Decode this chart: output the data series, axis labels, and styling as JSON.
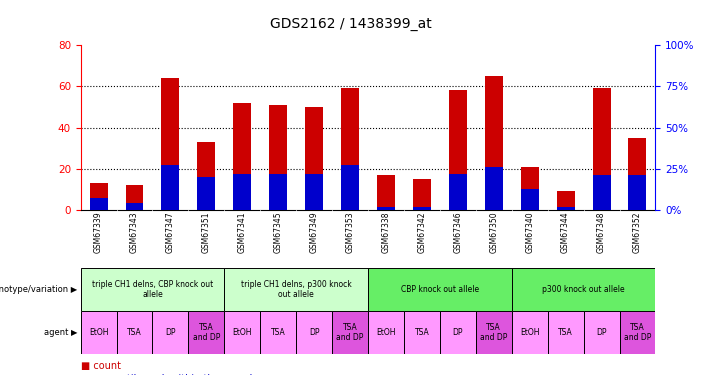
{
  "title": "GDS2162 / 1438399_at",
  "samples": [
    "GSM67339",
    "GSM67343",
    "GSM67347",
    "GSM67351",
    "GSM67341",
    "GSM67345",
    "GSM67349",
    "GSM67353",
    "GSM67338",
    "GSM67342",
    "GSM67346",
    "GSM67350",
    "GSM67340",
    "GSM67344",
    "GSM67348",
    "GSM67352"
  ],
  "counts": [
    13,
    12,
    64,
    33,
    52,
    51,
    50,
    59,
    17,
    15,
    58,
    65,
    21,
    9,
    59,
    35
  ],
  "percentiles": [
    7,
    4,
    27,
    20,
    22,
    22,
    22,
    27,
    2,
    2,
    22,
    26,
    13,
    2,
    21,
    21
  ],
  "ylim_left": [
    0,
    80
  ],
  "ylim_right": [
    0,
    100
  ],
  "yticks_left": [
    0,
    20,
    40,
    60,
    80
  ],
  "yticks_right": [
    0,
    25,
    50,
    75,
    100
  ],
  "bar_color": "#cc0000",
  "pct_color": "#0000cc",
  "bar_width": 0.5,
  "groups": [
    {
      "label": "triple CH1 delns, CBP knock out\nallele",
      "start": 0,
      "end": 3,
      "color": "#ccffcc"
    },
    {
      "label": "triple CH1 delns, p300 knock\nout allele",
      "start": 4,
      "end": 7,
      "color": "#ccffcc"
    },
    {
      "label": "CBP knock out allele",
      "start": 8,
      "end": 11,
      "color": "#66ee66"
    },
    {
      "label": "p300 knock out allele",
      "start": 12,
      "end": 15,
      "color": "#66ee66"
    }
  ],
  "agents": [
    "EtOH",
    "TSA",
    "DP",
    "TSA\nand DP",
    "EtOH",
    "TSA",
    "DP",
    "TSA\nand DP",
    "EtOH",
    "TSA",
    "DP",
    "TSA\nand DP",
    "EtOH",
    "TSA",
    "DP",
    "TSA\nand DP"
  ],
  "bg_color": "#ffffff",
  "sample_bg_color": "#cccccc",
  "group1_color": "#ccffcc",
  "group2_color": "#66ee66",
  "agent_normal_color": "#ff99ff",
  "agent_tsa_dp_color": "#dd55dd"
}
